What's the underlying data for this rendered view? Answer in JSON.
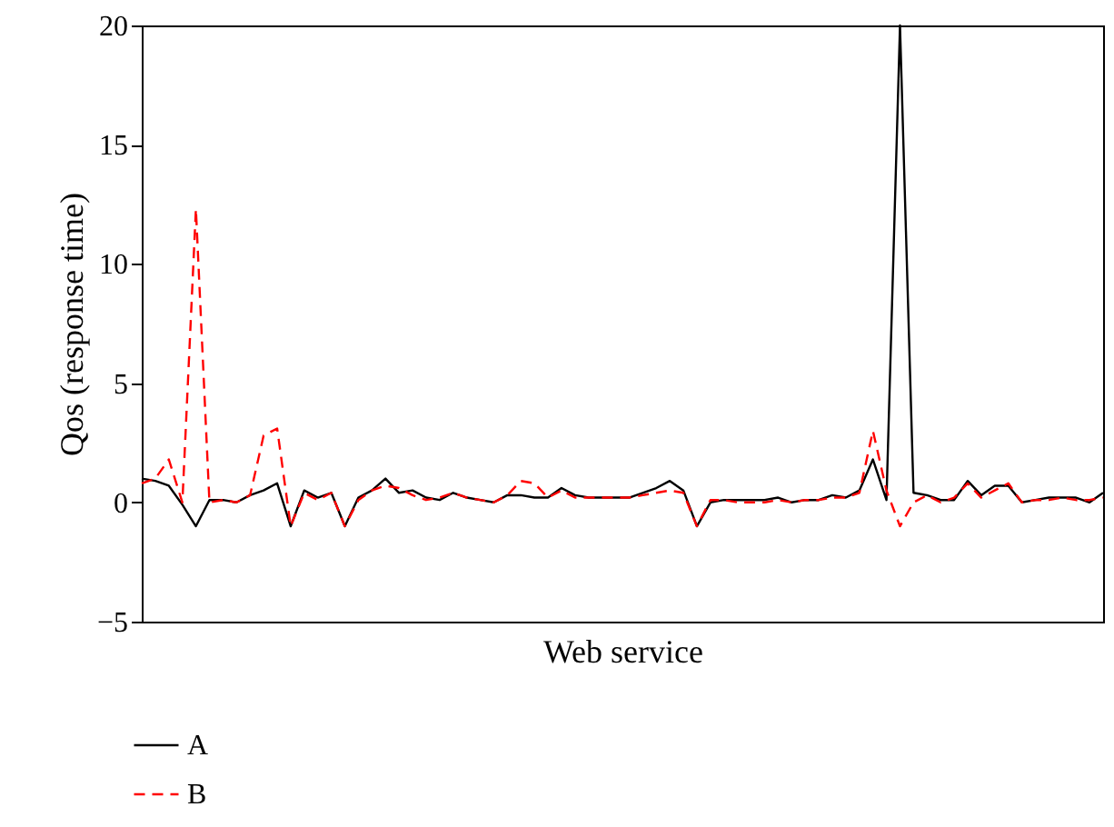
{
  "chart_data": {
    "type": "line",
    "xlabel": "Web service",
    "ylabel": "Qos (response time)",
    "categories": [
      null,
      null,
      null,
      null,
      null,
      null,
      null,
      null,
      null,
      null,
      null,
      null,
      null,
      null,
      null,
      null,
      null,
      null,
      null,
      null,
      null,
      null,
      null,
      null,
      null,
      null,
      null,
      null,
      null,
      null,
      null,
      null,
      null,
      null,
      null,
      null,
      null,
      null,
      null,
      null,
      null,
      null,
      null,
      null,
      null,
      null,
      null,
      null,
      null,
      null,
      null,
      null,
      null,
      null,
      null,
      null,
      null,
      null,
      null,
      null,
      null,
      null,
      null,
      null,
      null,
      null,
      null,
      null,
      null,
      null,
      null,
      null
    ],
    "series": [
      {
        "name": "A",
        "color": "#000000",
        "line_style": "solid",
        "values": [
          1.0,
          0.9,
          0.7,
          -0.1,
          -1.0,
          0.1,
          0.1,
          0.0,
          0.3,
          0.5,
          0.8,
          -1.0,
          0.5,
          0.2,
          0.4,
          -1.0,
          0.2,
          0.5,
          1.0,
          0.4,
          0.5,
          0.2,
          0.1,
          0.4,
          0.2,
          0.1,
          0.0,
          0.3,
          0.3,
          0.2,
          0.2,
          0.6,
          0.3,
          0.2,
          0.2,
          0.2,
          0.2,
          0.4,
          0.6,
          0.9,
          0.5,
          -1.0,
          0.0,
          0.1,
          0.1,
          0.1,
          0.1,
          0.2,
          0.0,
          0.1,
          0.1,
          0.3,
          0.2,
          0.5,
          1.8,
          0.1,
          20,
          0.4,
          0.3,
          0.1,
          0.1,
          0.9,
          0.3,
          0.7,
          0.7,
          0.0,
          0.1,
          0.2,
          0.2,
          0.2,
          0.0,
          0.4
        ]
      },
      {
        "name": "B",
        "color": "#ff0000",
        "line_style": "dashed",
        "values": [
          0.8,
          1.0,
          1.8,
          0.0,
          12.3,
          0.0,
          0.1,
          0.0,
          0.3,
          2.8,
          3.1,
          -1.0,
          0.4,
          0.1,
          0.4,
          -1.0,
          0.1,
          0.5,
          0.7,
          0.6,
          0.3,
          0.1,
          0.2,
          0.4,
          0.2,
          0.1,
          0.0,
          0.3,
          0.9,
          0.8,
          0.2,
          0.5,
          0.2,
          0.2,
          0.2,
          0.2,
          0.2,
          0.3,
          0.4,
          0.5,
          0.4,
          -1.0,
          0.1,
          0.1,
          0.0,
          0.0,
          0.0,
          0.1,
          0.0,
          0.1,
          0.1,
          0.2,
          0.2,
          0.4,
          3.0,
          0.5,
          -1.0,
          0.0,
          0.3,
          0.0,
          0.2,
          0.8,
          0.2,
          0.5,
          0.8,
          0.0,
          0.1,
          0.1,
          0.2,
          0.1,
          0.1,
          0.2
        ]
      }
    ],
    "ylim": [
      -5,
      20
    ],
    "yticks": [
      -5,
      0,
      5,
      10,
      15,
      20
    ],
    "grid": false,
    "legend": "bottom left"
  }
}
